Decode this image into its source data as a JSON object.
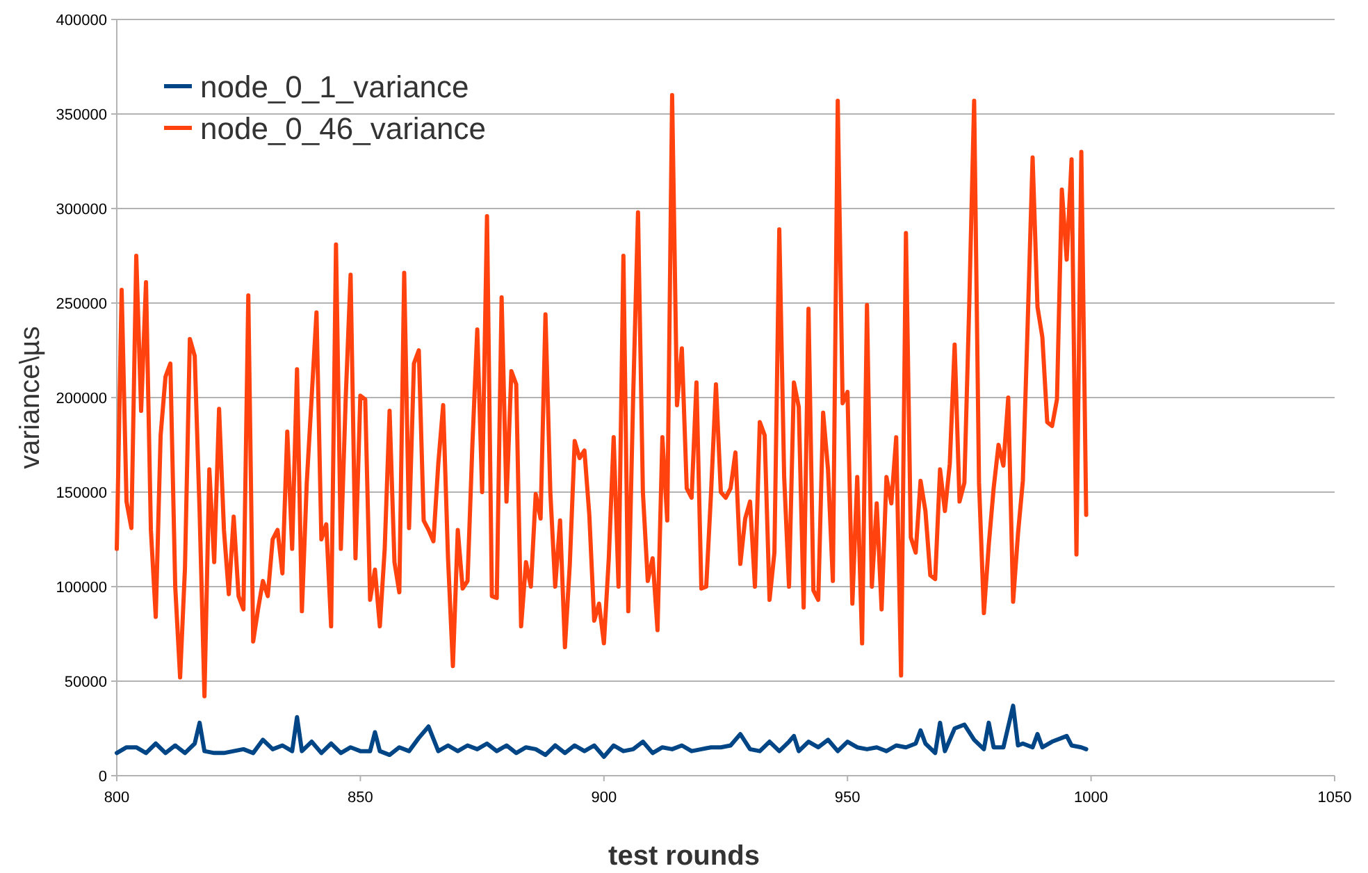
{
  "chart_data": {
    "type": "line",
    "xlabel": "test rounds",
    "ylabel": "variance\\µs",
    "xlim": [
      800,
      1050
    ],
    "xticks": [
      800,
      850,
      900,
      950,
      1000,
      1050
    ],
    "ylim": [
      0,
      400000
    ],
    "yticks": [
      0,
      50000,
      100000,
      150000,
      200000,
      250000,
      300000,
      350000,
      400000
    ],
    "grid": "y",
    "legend": "top left",
    "marker": "none",
    "line_style": "solid",
    "series": [
      {
        "name": "node_0_1_variance",
        "color": "#004586",
        "x": [
          800,
          802,
          804,
          806,
          808,
          810,
          812,
          814,
          816,
          817,
          818,
          820,
          822,
          824,
          826,
          828,
          830,
          832,
          834,
          836,
          837,
          838,
          840,
          842,
          844,
          846,
          848,
          850,
          852,
          853,
          854,
          856,
          858,
          860,
          862,
          864,
          866,
          868,
          870,
          872,
          874,
          876,
          878,
          880,
          882,
          884,
          886,
          888,
          890,
          892,
          894,
          896,
          898,
          900,
          902,
          904,
          906,
          908,
          910,
          912,
          914,
          916,
          918,
          920,
          922,
          924,
          926,
          928,
          930,
          932,
          934,
          936,
          938,
          939,
          940,
          942,
          944,
          946,
          948,
          950,
          952,
          954,
          956,
          958,
          960,
          962,
          964,
          965,
          966,
          968,
          969,
          970,
          972,
          974,
          976,
          978,
          979,
          980,
          982,
          984,
          985,
          986,
          988,
          989,
          990,
          992,
          994,
          995,
          996,
          998,
          999
        ],
        "values": [
          12000,
          15000,
          15000,
          12000,
          17000,
          12000,
          16000,
          12000,
          17000,
          28000,
          13000,
          12000,
          12000,
          13000,
          14000,
          12000,
          19000,
          14000,
          16000,
          13000,
          31000,
          13000,
          18000,
          12000,
          17000,
          12000,
          15000,
          13000,
          13000,
          23000,
          13000,
          11000,
          15000,
          13000,
          20000,
          26000,
          13000,
          16000,
          13000,
          16000,
          14000,
          17000,
          13000,
          16000,
          12000,
          15000,
          14000,
          11000,
          16000,
          12000,
          16000,
          13000,
          16000,
          10000,
          16000,
          13000,
          14000,
          18000,
          12000,
          15000,
          14000,
          16000,
          13000,
          14000,
          15000,
          15000,
          16000,
          22000,
          14000,
          13000,
          18000,
          13000,
          18000,
          21000,
          13000,
          18000,
          15000,
          19000,
          13000,
          18000,
          15000,
          14000,
          15000,
          13000,
          16000,
          15000,
          17000,
          24000,
          17000,
          12000,
          28000,
          13000,
          25000,
          27000,
          19000,
          14000,
          28000,
          15000,
          15000,
          37000,
          16000,
          17000,
          15000,
          22000,
          15000,
          18000,
          20000,
          21000,
          16000,
          15000,
          14000
        ]
      },
      {
        "name": "node_0_46_variance",
        "color": "#ff420e",
        "x": [
          800,
          801,
          802,
          803,
          804,
          805,
          806,
          807,
          808,
          809,
          810,
          811,
          812,
          813,
          814,
          815,
          816,
          817,
          818,
          819,
          820,
          821,
          822,
          823,
          824,
          825,
          826,
          827,
          828,
          829,
          830,
          831,
          832,
          833,
          834,
          835,
          836,
          837,
          838,
          839,
          840,
          841,
          842,
          843,
          844,
          845,
          846,
          847,
          848,
          849,
          850,
          851,
          852,
          853,
          854,
          855,
          856,
          857,
          858,
          859,
          860,
          861,
          862,
          863,
          864,
          865,
          866,
          867,
          868,
          869,
          870,
          871,
          872,
          873,
          874,
          875,
          876,
          877,
          878,
          879,
          880,
          881,
          882,
          883,
          884,
          885,
          886,
          887,
          888,
          889,
          890,
          891,
          892,
          893,
          894,
          895,
          896,
          897,
          898,
          899,
          900,
          901,
          902,
          903,
          904,
          905,
          906,
          907,
          908,
          909,
          910,
          911,
          912,
          913,
          914,
          915,
          916,
          917,
          918,
          919,
          920,
          921,
          922,
          923,
          924,
          925,
          926,
          927,
          928,
          929,
          930,
          931,
          932,
          933,
          934,
          935,
          936,
          937,
          938,
          939,
          940,
          941,
          942,
          943,
          944,
          945,
          946,
          947,
          948,
          949,
          950,
          951,
          952,
          953,
          954,
          955,
          956,
          957,
          958,
          959,
          960,
          961,
          962,
          963,
          964,
          965,
          966,
          967,
          968,
          969,
          970,
          971,
          972,
          973,
          974,
          975,
          976,
          977,
          978,
          979,
          980,
          981,
          982,
          983,
          984,
          985,
          986,
          987,
          988,
          989,
          990,
          991,
          992,
          993,
          994,
          995,
          996,
          997,
          998,
          999
        ],
        "values": [
          120000,
          257000,
          145000,
          131000,
          275000,
          193000,
          261000,
          130000,
          84000,
          180000,
          211000,
          218000,
          100000,
          52000,
          110000,
          231000,
          222000,
          140000,
          42000,
          162000,
          113000,
          194000,
          130000,
          96000,
          137000,
          95000,
          88000,
          254000,
          71000,
          88000,
          103000,
          95000,
          125000,
          130000,
          107000,
          182000,
          120000,
          215000,
          87000,
          155000,
          200000,
          245000,
          125000,
          133000,
          79000,
          281000,
          120000,
          200000,
          265000,
          115000,
          201000,
          199000,
          93000,
          109000,
          79000,
          120000,
          193000,
          113000,
          97000,
          266000,
          131000,
          218000,
          225000,
          135000,
          130000,
          124000,
          165000,
          196000,
          115000,
          58000,
          130000,
          99000,
          103000,
          175000,
          236000,
          150000,
          296000,
          95000,
          94000,
          253000,
          145000,
          214000,
          207000,
          79000,
          113000,
          100000,
          149000,
          136000,
          244000,
          150000,
          100000,
          135000,
          68000,
          112000,
          177000,
          168000,
          172000,
          138000,
          82000,
          91000,
          70000,
          115000,
          179000,
          100000,
          275000,
          87000,
          200000,
          298000,
          150000,
          103000,
          115000,
          77000,
          179000,
          135000,
          360000,
          196000,
          226000,
          152000,
          147000,
          208000,
          99000,
          100000,
          150000,
          207000,
          150000,
          147000,
          152000,
          171000,
          112000,
          136000,
          145000,
          100000,
          187000,
          180000,
          93000,
          118000,
          289000,
          158000,
          100000,
          208000,
          195000,
          89000,
          247000,
          98000,
          93000,
          192000,
          162000,
          103000,
          357000,
          197000,
          203000,
          91000,
          158000,
          70000,
          249000,
          100000,
          144000,
          88000,
          158000,
          144000,
          179000,
          53000,
          287000,
          126000,
          118000,
          156000,
          140000,
          106000,
          104000,
          162000,
          140000,
          165000,
          228000,
          145000,
          155000,
          250000,
          357000,
          155000,
          86000,
          122000,
          152000,
          175000,
          164000,
          200000,
          92000,
          128000,
          156000,
          240000,
          327000,
          248000,
          232000,
          187000,
          185000,
          199000,
          310000,
          273000,
          326000,
          117000,
          330000,
          138000
        ]
      }
    ]
  }
}
